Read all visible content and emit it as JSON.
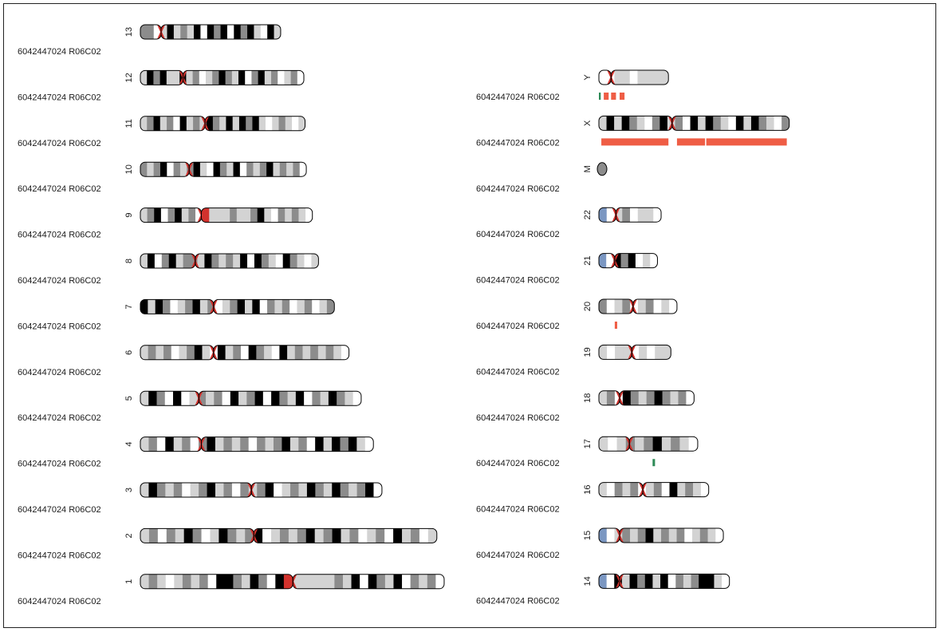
{
  "colors": {
    "light": "#d3d3d3",
    "grey": "#8c8c8c",
    "dark": "#000000",
    "centromere": "#d2322d",
    "p_arm_tip": "#7b97c2",
    "outline": "#000000",
    "gain": "#ef5d45",
    "loss": "#2e8b57",
    "text": "#1a1a1a"
  },
  "sample_label": "6042447024  R06C02",
  "columns": [
    {
      "chromosomes": [
        {
          "name": "13",
          "length": 115,
          "centromere": 17,
          "bands": [
            "g",
            "g",
            "w",
            "l",
            "d",
            "l",
            "g",
            "l",
            "d",
            "w",
            "d",
            "g",
            "d",
            "w",
            "d",
            "g",
            "d",
            "l",
            "w",
            "d",
            "l"
          ],
          "segments": []
        },
        {
          "name": "12",
          "length": 134,
          "centromere": 35,
          "bands": [
            "l",
            "d",
            "g",
            "d",
            "l",
            "l",
            "d",
            "l",
            "g",
            "w",
            "l",
            "g",
            "d",
            "g",
            "l",
            "d",
            "w",
            "g",
            "d",
            "l",
            "g",
            "w",
            "l",
            "g",
            "w"
          ],
          "segments": []
        },
        {
          "name": "11",
          "length": 135,
          "centromere": 53,
          "bands": [
            "l",
            "g",
            "d",
            "l",
            "g",
            "w",
            "d",
            "l",
            "g",
            "l",
            "d",
            "g",
            "l",
            "d",
            "l",
            "d",
            "g",
            "d",
            "l",
            "w",
            "l",
            "g",
            "l",
            "w",
            "l"
          ],
          "segments": []
        },
        {
          "name": "10",
          "length": 136,
          "centromere": 40,
          "bands": [
            "g",
            "l",
            "g",
            "d",
            "w",
            "g",
            "l",
            "g",
            "d",
            "l",
            "w",
            "d",
            "g",
            "l",
            "d",
            "w",
            "g",
            "l",
            "g",
            "d",
            "l",
            "g",
            "l",
            "g",
            "w"
          ],
          "segments": []
        },
        {
          "name": "9",
          "length": 141,
          "centromere": 50,
          "bands": [
            "l",
            "g",
            "d",
            "w",
            "g",
            "d",
            "l",
            "g",
            "w",
            "c",
            "l",
            "l",
            "l",
            "g",
            "l",
            "l",
            "g",
            "d",
            "l",
            "w",
            "g",
            "l",
            "g",
            "l",
            "w"
          ],
          "segments": []
        },
        {
          "name": "8",
          "length": 146,
          "centromere": 45,
          "bands": [
            "l",
            "d",
            "w",
            "g",
            "d",
            "l",
            "g",
            "g",
            "l",
            "d",
            "g",
            "l",
            "g",
            "l",
            "d",
            "w",
            "d",
            "g",
            "l",
            "w",
            "d",
            "g",
            "l",
            "w",
            "l"
          ],
          "segments": []
        },
        {
          "name": "7",
          "length": 159,
          "centromere": 60,
          "bands": [
            "d",
            "l",
            "d",
            "g",
            "w",
            "l",
            "g",
            "d",
            "l",
            "g",
            "w",
            "l",
            "g",
            "d",
            "l",
            "d",
            "w",
            "g",
            "l",
            "g",
            "w",
            "l",
            "g",
            "w",
            "l",
            "g"
          ],
          "segments": []
        },
        {
          "name": "6",
          "length": 171,
          "centromere": 60,
          "bands": [
            "l",
            "g",
            "l",
            "g",
            "w",
            "l",
            "g",
            "d",
            "l",
            "w",
            "d",
            "l",
            "g",
            "w",
            "d",
            "g",
            "l",
            "w",
            "d",
            "l",
            "g",
            "l",
            "g",
            "l",
            "g",
            "l",
            "w"
          ],
          "segments": []
        },
        {
          "name": "5",
          "length": 181,
          "centromere": 48,
          "bands": [
            "l",
            "d",
            "g",
            "w",
            "d",
            "w",
            "l",
            "g",
            "l",
            "g",
            "w",
            "d",
            "l",
            "g",
            "d",
            "w",
            "d",
            "g",
            "l",
            "d",
            "w",
            "g",
            "l",
            "d",
            "g",
            "l",
            "w"
          ],
          "segments": []
        },
        {
          "name": "4",
          "length": 191,
          "centromere": 50,
          "bands": [
            "l",
            "g",
            "w",
            "d",
            "l",
            "g",
            "w",
            "g",
            "d",
            "l",
            "g",
            "l",
            "g",
            "w",
            "g",
            "l",
            "g",
            "d",
            "l",
            "g",
            "w",
            "d",
            "l",
            "d",
            "g",
            "d",
            "l",
            "w"
          ],
          "segments": []
        },
        {
          "name": "3",
          "length": 198,
          "centromere": 91,
          "bands": [
            "l",
            "d",
            "g",
            "l",
            "g",
            "w",
            "l",
            "g",
            "d",
            "l",
            "g",
            "w",
            "g",
            "l",
            "g",
            "d",
            "w",
            "l",
            "g",
            "l",
            "d",
            "g",
            "l",
            "d",
            "g",
            "l",
            "g",
            "d",
            "w"
          ],
          "segments": []
        },
        {
          "name": "2",
          "length": 243,
          "centromere": 93,
          "bands": [
            "l",
            "g",
            "w",
            "g",
            "l",
            "d",
            "g",
            "w",
            "l",
            "d",
            "g",
            "l",
            "g",
            "d",
            "w",
            "l",
            "g",
            "l",
            "g",
            "d",
            "l",
            "g",
            "d",
            "l",
            "g",
            "w",
            "l",
            "g",
            "w",
            "d",
            "l",
            "g",
            "w",
            "l"
          ],
          "segments": []
        },
        {
          "name": "1",
          "length": 249,
          "centromere": 125,
          "bands": [
            "l",
            "g",
            "l",
            "w",
            "l",
            "g",
            "l",
            "g",
            "w",
            "d",
            "d",
            "g",
            "l",
            "d",
            "g",
            "w",
            "d",
            "c",
            "l",
            "l",
            "l",
            "l",
            "l",
            "g",
            "l",
            "d",
            "w",
            "d",
            "g",
            "l",
            "d",
            "w",
            "g",
            "l",
            "g",
            "w"
          ],
          "segments": []
        }
      ]
    },
    {
      "chromosomes": [
        {
          "name": "Y",
          "length": 57,
          "centromere": 10,
          "bands": [
            "w",
            "w",
            "l",
            "l",
            "w",
            "l",
            "l",
            "l",
            "l"
          ],
          "segments": [
            {
              "type": "loss",
              "start": 0,
              "end": 1.5
            },
            {
              "type": "gain",
              "start": 4,
              "end": 8
            },
            {
              "type": "gain",
              "start": 10,
              "end": 14
            },
            {
              "type": "gain",
              "start": 17,
              "end": 21
            }
          ]
        },
        {
          "name": "X",
          "length": 156,
          "centromere": 60,
          "bands": [
            "l",
            "d",
            "l",
            "d",
            "g",
            "l",
            "w",
            "g",
            "d",
            "l",
            "g",
            "w",
            "d",
            "l",
            "d",
            "g",
            "l",
            "w",
            "d",
            "l",
            "d",
            "g",
            "l",
            "w",
            "g"
          ],
          "segments": [
            {
              "type": "gain",
              "start": 2,
              "end": 57
            },
            {
              "type": "gain",
              "start": 64,
              "end": 87
            },
            {
              "type": "gain",
              "start": 88,
              "end": 154
            }
          ]
        },
        {
          "name": "M",
          "length": 9,
          "centromere": 0,
          "mito": true,
          "bands": [],
          "segments": []
        },
        {
          "name": "22",
          "length": 51,
          "centromere": 14,
          "bands": [
            "b",
            "w",
            "l",
            "g",
            "w",
            "l",
            "l",
            "w"
          ],
          "segments": []
        },
        {
          "name": "21",
          "length": 48,
          "centromere": 13,
          "bands": [
            "b",
            "w",
            "d",
            "g",
            "d",
            "w",
            "l",
            "w"
          ],
          "segments": []
        },
        {
          "name": "20",
          "length": 64,
          "centromere": 28,
          "bands": [
            "g",
            "w",
            "l",
            "g",
            "w",
            "l",
            "g",
            "w",
            "l",
            "w"
          ],
          "segments": [
            {
              "type": "gain",
              "start": 13,
              "end": 15
            }
          ]
        },
        {
          "name": "19",
          "length": 59,
          "centromere": 27,
          "bands": [
            "l",
            "w",
            "l",
            "l",
            "w",
            "l",
            "w",
            "l",
            "l"
          ],
          "segments": []
        },
        {
          "name": "18",
          "length": 78,
          "centromere": 17,
          "bands": [
            "l",
            "g",
            "w",
            "d",
            "g",
            "l",
            "g",
            "d",
            "g",
            "l",
            "g",
            "w"
          ],
          "segments": []
        },
        {
          "name": "17",
          "length": 81,
          "centromere": 25,
          "bands": [
            "l",
            "w",
            "l",
            "g",
            "l",
            "g",
            "d",
            "l",
            "g",
            "l",
            "w"
          ],
          "segments": [
            {
              "type": "loss",
              "start": 44,
              "end": 46
            }
          ]
        },
        {
          "name": "16",
          "length": 90,
          "centromere": 36,
          "bands": [
            "l",
            "w",
            "g",
            "l",
            "g",
            "w",
            "l",
            "g",
            "w",
            "d",
            "l",
            "g",
            "l",
            "w"
          ],
          "segments": []
        },
        {
          "name": "15",
          "length": 102,
          "centromere": 17,
          "bands": [
            "b",
            "w",
            "l",
            "g",
            "l",
            "g",
            "d",
            "l",
            "g",
            "l",
            "g",
            "w",
            "l",
            "g",
            "l",
            "w"
          ],
          "segments": []
        },
        {
          "name": "14",
          "length": 107,
          "centromere": 17,
          "bands": [
            "b",
            "w",
            "d",
            "l",
            "d",
            "g",
            "d",
            "l",
            "d",
            "w",
            "g",
            "l",
            "g",
            "d",
            "d",
            "l",
            "w"
          ],
          "segments": []
        }
      ]
    }
  ]
}
